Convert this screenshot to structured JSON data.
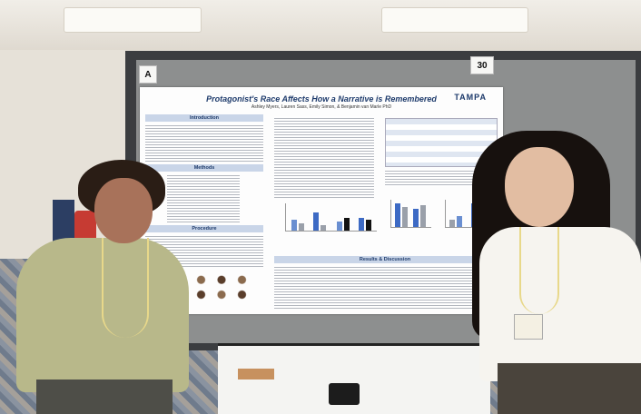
{
  "photo": {
    "board_labels": {
      "left": "A",
      "right": "30"
    },
    "poster": {
      "title": "Protagonist's Race Affects How a Narrative is Remembered",
      "authors": "Ashley Myers, Lauren Sass, Emily Simon, & Benjamin van Marle PhD",
      "logo": "TAMPA",
      "sections": {
        "introduction": "Introduction",
        "methods": "Methods",
        "procedure": "Procedure",
        "results": "Results & Discussion"
      }
    }
  }
}
